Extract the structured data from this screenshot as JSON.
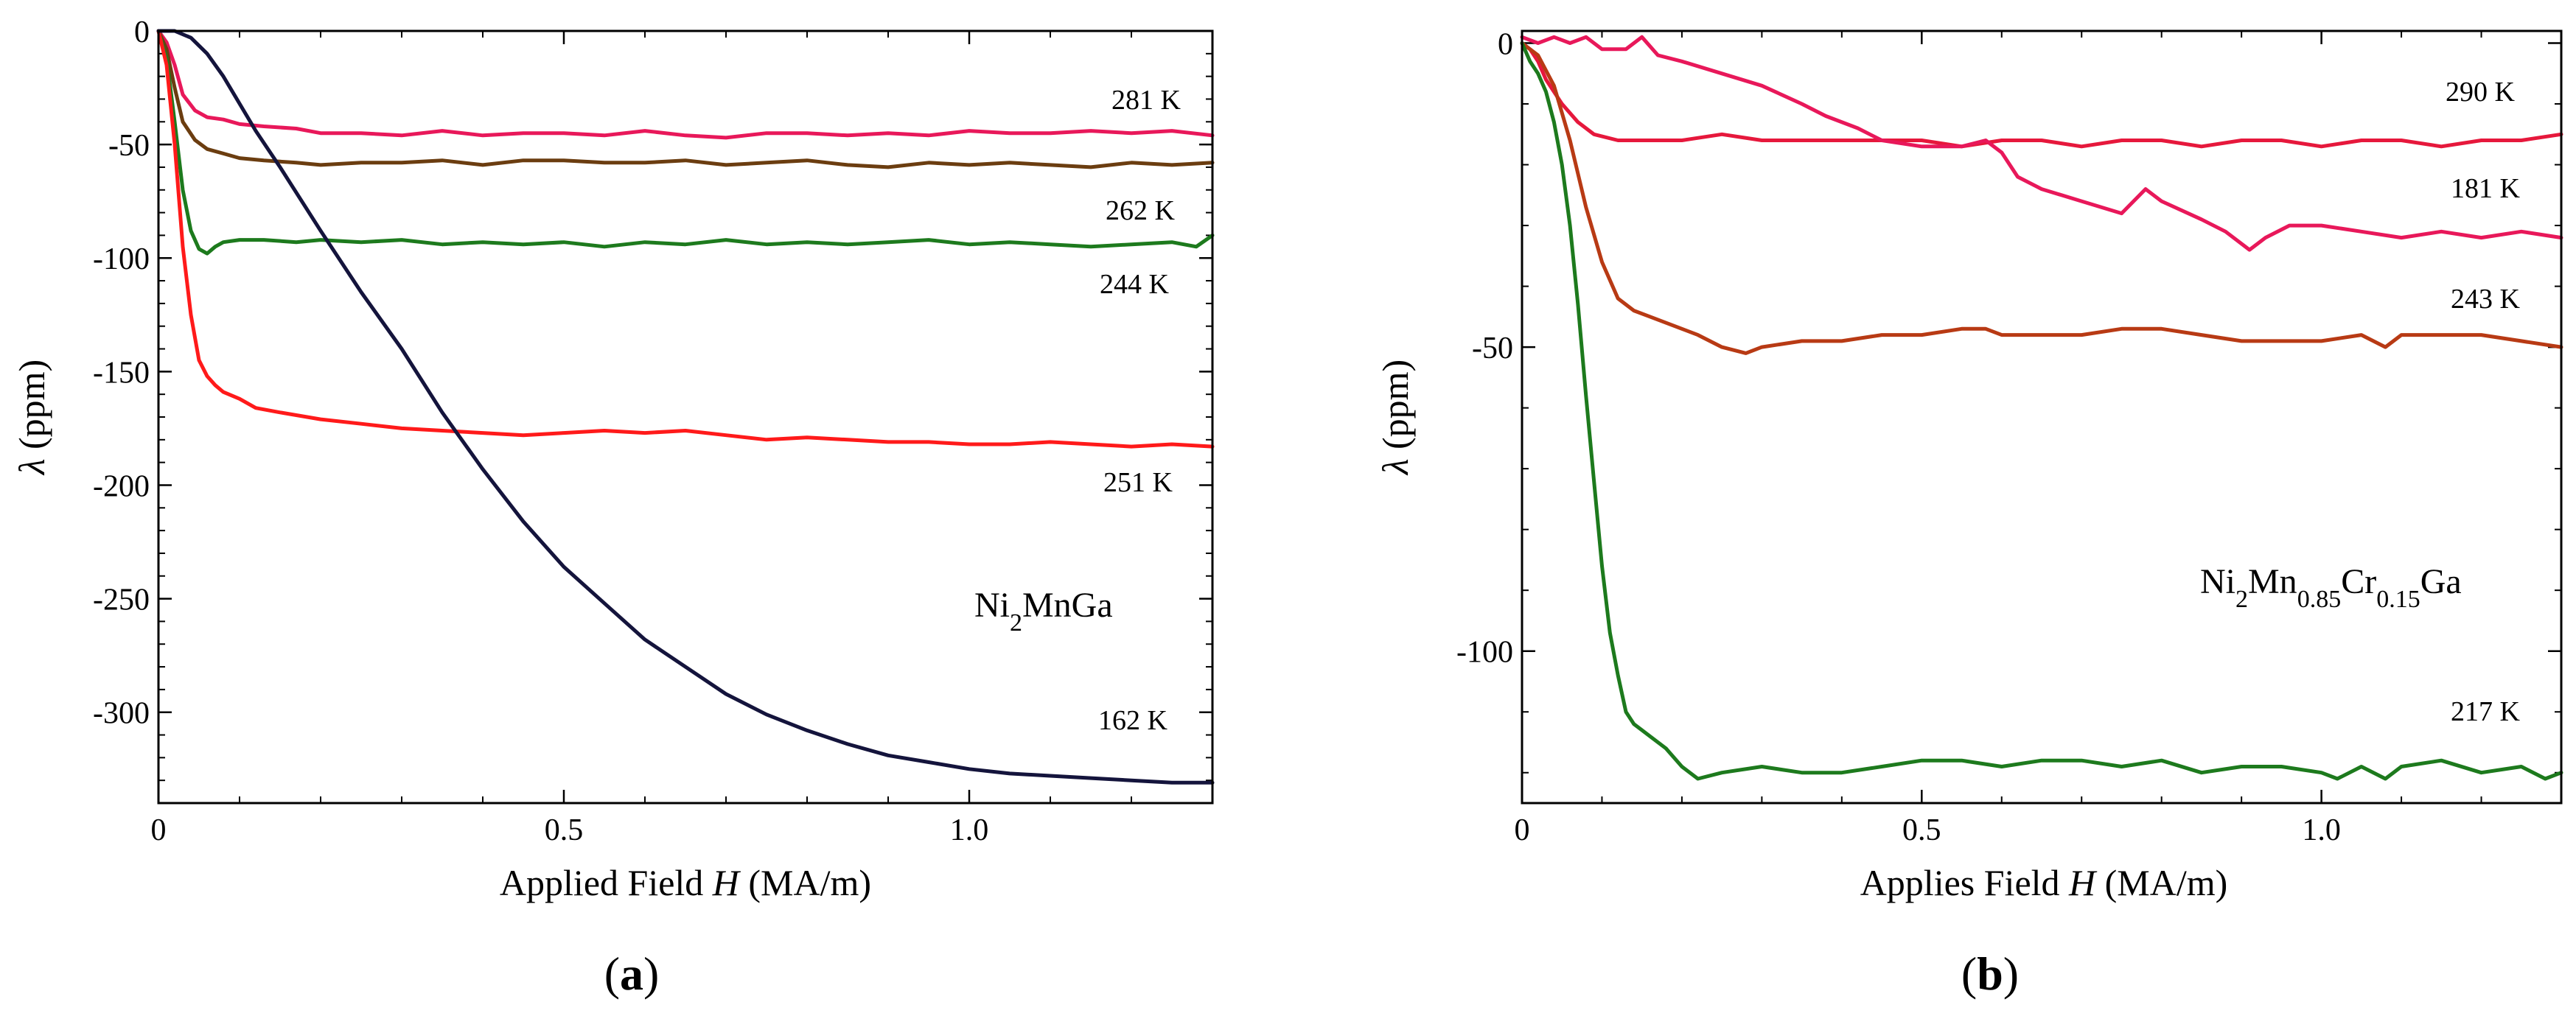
{
  "chart_data": [
    {
      "type": "line",
      "panel_label": "a",
      "xlabel": "Applied Field",
      "xlabel_var": "H",
      "xlabel_unit": "(MA/m)",
      "ylabel_symbol": "λ",
      "ylabel_unit": "(ppm)",
      "xlim": [
        0,
        1.3
      ],
      "ylim": [
        -340,
        0
      ],
      "xticks": [
        0,
        0.5,
        1.0
      ],
      "xtick_labels": [
        "0",
        "0.5",
        "1.0"
      ],
      "yticks": [
        0,
        -50,
        -100,
        -150,
        -200,
        -250,
        -300
      ],
      "ytick_labels": [
        "0",
        "-50",
        "-100",
        "-150",
        "-200",
        "-250",
        "-300"
      ],
      "compound": {
        "parts": [
          {
            "t": "Ni",
            "sub": false
          },
          {
            "t": "2",
            "sub": true
          },
          {
            "t": "MnGa",
            "sub": false
          }
        ]
      },
      "series": [
        {
          "name": "281 K",
          "color": "#e8185a",
          "x": [
            0,
            0.01,
            0.02,
            0.03,
            0.045,
            0.06,
            0.08,
            0.1,
            0.13,
            0.17,
            0.2,
            0.25,
            0.3,
            0.35,
            0.4,
            0.45,
            0.5,
            0.55,
            0.6,
            0.65,
            0.7,
            0.75,
            0.8,
            0.85,
            0.9,
            0.95,
            1.0,
            1.05,
            1.1,
            1.15,
            1.2,
            1.25,
            1.3
          ],
          "y": [
            0,
            -5,
            -15,
            -28,
            -35,
            -38,
            -39,
            -41,
            -42,
            -43,
            -45,
            -45,
            -46,
            -44,
            -46,
            -45,
            -45,
            -46,
            -44,
            -46,
            -47,
            -45,
            -45,
            -46,
            -45,
            -46,
            -44,
            -45,
            -45,
            -44,
            -45,
            -44,
            -46
          ]
        },
        {
          "name": "262 K",
          "color": "#6b3d10",
          "x": [
            0,
            0.01,
            0.02,
            0.03,
            0.045,
            0.06,
            0.08,
            0.1,
            0.13,
            0.17,
            0.2,
            0.25,
            0.3,
            0.35,
            0.4,
            0.45,
            0.5,
            0.55,
            0.6,
            0.65,
            0.7,
            0.75,
            0.8,
            0.85,
            0.9,
            0.95,
            1.0,
            1.05,
            1.1,
            1.15,
            1.2,
            1.25,
            1.3
          ],
          "y": [
            0,
            -8,
            -25,
            -40,
            -48,
            -52,
            -54,
            -56,
            -57,
            -58,
            -59,
            -58,
            -58,
            -57,
            -59,
            -57,
            -57,
            -58,
            -58,
            -57,
            -59,
            -58,
            -57,
            -59,
            -60,
            -58,
            -59,
            -58,
            -59,
            -60,
            -58,
            -59,
            -58
          ]
        },
        {
          "name": "244 K",
          "color": "#1d7a1d",
          "x": [
            0,
            0.01,
            0.02,
            0.03,
            0.04,
            0.05,
            0.06,
            0.07,
            0.08,
            0.1,
            0.13,
            0.17,
            0.2,
            0.25,
            0.3,
            0.35,
            0.4,
            0.45,
            0.5,
            0.55,
            0.6,
            0.65,
            0.7,
            0.75,
            0.8,
            0.85,
            0.9,
            0.95,
            1.0,
            1.05,
            1.1,
            1.15,
            1.2,
            1.25,
            1.28,
            1.3
          ],
          "y": [
            0,
            -12,
            -40,
            -70,
            -88,
            -96,
            -98,
            -95,
            -93,
            -92,
            -92,
            -93,
            -92,
            -93,
            -92,
            -94,
            -93,
            -94,
            -93,
            -95,
            -93,
            -94,
            -92,
            -94,
            -93,
            -94,
            -93,
            -92,
            -94,
            -93,
            -94,
            -95,
            -94,
            -93,
            -95,
            -90
          ]
        },
        {
          "name": "251 K",
          "color": "#ff1a1a",
          "x": [
            0,
            0.01,
            0.02,
            0.03,
            0.04,
            0.05,
            0.06,
            0.07,
            0.08,
            0.1,
            0.12,
            0.15,
            0.2,
            0.25,
            0.3,
            0.35,
            0.4,
            0.45,
            0.5,
            0.55,
            0.6,
            0.65,
            0.7,
            0.75,
            0.8,
            0.85,
            0.9,
            0.95,
            1.0,
            1.05,
            1.1,
            1.15,
            1.2,
            1.25,
            1.3
          ],
          "y": [
            0,
            -15,
            -50,
            -95,
            -125,
            -145,
            -152,
            -156,
            -159,
            -162,
            -166,
            -168,
            -171,
            -173,
            -175,
            -176,
            -177,
            -178,
            -177,
            -176,
            -177,
            -176,
            -178,
            -180,
            -179,
            -180,
            -181,
            -181,
            -182,
            -182,
            -181,
            -182,
            -183,
            -182,
            -183
          ]
        },
        {
          "name": "162 K",
          "color": "#14143c",
          "x": [
            0,
            0.02,
            0.04,
            0.06,
            0.08,
            0.1,
            0.12,
            0.15,
            0.2,
            0.25,
            0.3,
            0.35,
            0.4,
            0.45,
            0.5,
            0.55,
            0.6,
            0.65,
            0.7,
            0.75,
            0.8,
            0.85,
            0.9,
            0.95,
            1.0,
            1.05,
            1.1,
            1.15,
            1.2,
            1.25,
            1.3
          ],
          "y": [
            0,
            0,
            -3,
            -10,
            -20,
            -32,
            -44,
            -60,
            -88,
            -115,
            -140,
            -168,
            -193,
            -216,
            -236,
            -252,
            -268,
            -280,
            -292,
            -301,
            -308,
            -314,
            -319,
            -322,
            -325,
            -327,
            -328,
            -329,
            -330,
            -331,
            -331
          ]
        }
      ],
      "annotations": [
        "281 K",
        "262 K",
        "244 K",
        "251 K",
        "162 K"
      ]
    },
    {
      "type": "line",
      "panel_label": "b",
      "xlabel": "Applies Field",
      "xlabel_var": "H",
      "xlabel_unit": "(MA/m)",
      "ylabel_symbol": "λ",
      "ylabel_unit": "(ppm)",
      "xlim": [
        0,
        1.3
      ],
      "ylim": [
        -125,
        2
      ],
      "xticks": [
        0,
        0.5,
        1.0
      ],
      "xtick_labels": [
        "0",
        "0.5",
        "1.0"
      ],
      "yticks": [
        0,
        -50,
        -100
      ],
      "ytick_labels": [
        "0",
        "-50",
        "-100"
      ],
      "compound": {
        "parts": [
          {
            "t": "Ni",
            "sub": false
          },
          {
            "t": "2",
            "sub": true
          },
          {
            "t": "Mn",
            "sub": false
          },
          {
            "t": "0.85",
            "sub": true
          },
          {
            "t": "Cr",
            "sub": false
          },
          {
            "t": "0.15",
            "sub": true
          },
          {
            "t": "Ga",
            "sub": false
          }
        ]
      },
      "series": [
        {
          "name": "290 K",
          "color": "#e6183c",
          "x": [
            0,
            0.01,
            0.02,
            0.03,
            0.05,
            0.07,
            0.09,
            0.12,
            0.15,
            0.2,
            0.25,
            0.3,
            0.35,
            0.4,
            0.45,
            0.5,
            0.55,
            0.6,
            0.65,
            0.7,
            0.75,
            0.8,
            0.85,
            0.9,
            0.95,
            1.0,
            1.05,
            1.1,
            1.15,
            1.2,
            1.25,
            1.3
          ],
          "y": [
            0,
            -1,
            -3,
            -6,
            -10,
            -13,
            -15,
            -16,
            -16,
            -16,
            -15,
            -16,
            -16,
            -16,
            -16,
            -16,
            -17,
            -16,
            -16,
            -17,
            -16,
            -16,
            -17,
            -16,
            -16,
            -17,
            -16,
            -16,
            -17,
            -16,
            -16,
            -15
          ]
        },
        {
          "name": "181 K",
          "color": "#e8185a",
          "x": [
            0,
            0.02,
            0.04,
            0.06,
            0.08,
            0.1,
            0.13,
            0.15,
            0.17,
            0.2,
            0.25,
            0.3,
            0.35,
            0.38,
            0.42,
            0.45,
            0.5,
            0.55,
            0.58,
            0.6,
            0.62,
            0.65,
            0.7,
            0.75,
            0.78,
            0.8,
            0.85,
            0.88,
            0.91,
            0.93,
            0.96,
            1.0,
            1.05,
            1.1,
            1.15,
            1.2,
            1.25,
            1.3
          ],
          "y": [
            1,
            0,
            1,
            0,
            1,
            -1,
            -1,
            1,
            -2,
            -3,
            -5,
            -7,
            -10,
            -12,
            -14,
            -16,
            -17,
            -17,
            -16,
            -18,
            -22,
            -24,
            -26,
            -28,
            -24,
            -26,
            -29,
            -31,
            -34,
            -32,
            -30,
            -30,
            -31,
            -32,
            -31,
            -32,
            -31,
            -32
          ]
        },
        {
          "name": "243 K",
          "color": "#b83a14",
          "x": [
            0,
            0.02,
            0.04,
            0.06,
            0.08,
            0.1,
            0.12,
            0.14,
            0.16,
            0.18,
            0.2,
            0.22,
            0.25,
            0.28,
            0.3,
            0.35,
            0.4,
            0.45,
            0.5,
            0.55,
            0.58,
            0.6,
            0.65,
            0.7,
            0.75,
            0.8,
            0.85,
            0.9,
            0.95,
            1.0,
            1.05,
            1.08,
            1.1,
            1.15,
            1.2,
            1.25,
            1.3
          ],
          "y": [
            0,
            -2,
            -7,
            -16,
            -27,
            -36,
            -42,
            -44,
            -45,
            -46,
            -47,
            -48,
            -50,
            -51,
            -50,
            -49,
            -49,
            -48,
            -48,
            -47,
            -47,
            -48,
            -48,
            -48,
            -47,
            -47,
            -48,
            -49,
            -49,
            -49,
            -48,
            -50,
            -48,
            -48,
            -48,
            -49,
            -50
          ]
        },
        {
          "name": "217 K",
          "color": "#1d7a1d",
          "x": [
            0,
            0.01,
            0.02,
            0.03,
            0.04,
            0.05,
            0.06,
            0.07,
            0.08,
            0.09,
            0.1,
            0.11,
            0.12,
            0.13,
            0.14,
            0.15,
            0.16,
            0.18,
            0.2,
            0.22,
            0.25,
            0.3,
            0.35,
            0.4,
            0.45,
            0.5,
            0.55,
            0.6,
            0.65,
            0.7,
            0.75,
            0.8,
            0.85,
            0.9,
            0.95,
            1.0,
            1.02,
            1.05,
            1.08,
            1.1,
            1.15,
            1.2,
            1.25,
            1.28,
            1.3
          ],
          "y": [
            0,
            -3,
            -5,
            -8,
            -13,
            -20,
            -30,
            -43,
            -58,
            -72,
            -86,
            -97,
            -104,
            -110,
            -112,
            -113,
            -114,
            -116,
            -119,
            -121,
            -120,
            -119,
            -120,
            -120,
            -119,
            -118,
            -118,
            -119,
            -118,
            -118,
            -119,
            -118,
            -120,
            -119,
            -119,
            -120,
            -121,
            -119,
            -121,
            -119,
            -118,
            -120,
            -119,
            -121,
            -120
          ]
        }
      ],
      "annotations": [
        "290 K",
        "181 K",
        "243 K",
        "217 K"
      ]
    }
  ]
}
